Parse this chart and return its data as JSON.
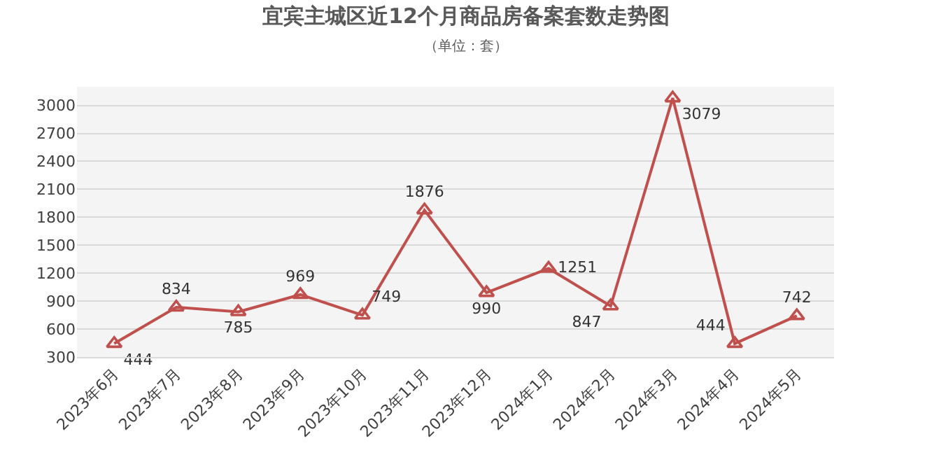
{
  "chart_data": {
    "type": "line",
    "title": "宜宾主城区近12个月商品房备案套数走势图",
    "subtitle": "（单位：套）",
    "categories": [
      "2023年6月",
      "2023年7月",
      "2023年8月",
      "2023年9月",
      "2023年10月",
      "2023年11月",
      "2023年12月",
      "2024年1月",
      "2024年2月",
      "2024年3月",
      "2024年4月",
      "2024年5月"
    ],
    "series": [
      {
        "color": "#c0504d",
        "values": [
          444,
          834,
          785,
          969,
          749,
          1876,
          990,
          1251,
          847,
          3079,
          444,
          742
        ]
      }
    ],
    "ylim": [
      300,
      3200
    ],
    "yticks": [
      300,
      600,
      900,
      1200,
      1500,
      1800,
      2100,
      2400,
      2700,
      3000
    ],
    "grid": "y",
    "marker": "triangle",
    "line_style": "solid",
    "data_labels": true,
    "legend": false
  }
}
